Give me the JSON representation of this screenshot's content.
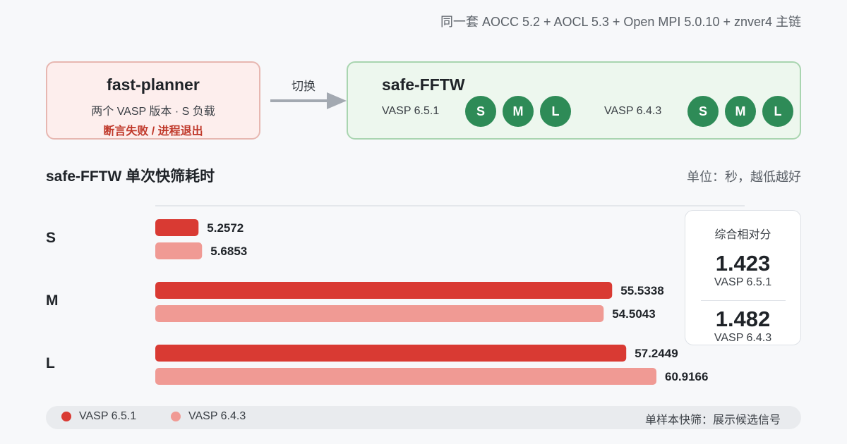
{
  "subtitle": "同一套 AOCC 5.2 + AOCL 5.3 + Open MPI 5.0.10 + znver4 主链",
  "fast_planner": {
    "title": "fast-planner",
    "desc": "两个 VASP 版本 · S 负载",
    "error": "断言失败 / 进程退出"
  },
  "arrow_label": "切换",
  "safe_fftw": {
    "title": "safe-FFTW",
    "version_a": "VASP 6.5.1",
    "version_b": "VASP 6.4.3",
    "loads_a": [
      "S",
      "M",
      "L"
    ],
    "loads_b": [
      "S",
      "M",
      "L"
    ]
  },
  "section_title": "safe-FFTW 单次快筛耗时",
  "unit": "单位：秒，越低越好",
  "colors": {
    "series_a": "#d93a33",
    "series_b": "#f09a94",
    "ok_green": "#2e8b57"
  },
  "chart_data": {
    "type": "bar",
    "orientation": "horizontal",
    "categories": [
      "S",
      "M",
      "L"
    ],
    "series": [
      {
        "name": "VASP 6.5.1",
        "values": [
          5.2572,
          55.5338,
          57.2449
        ],
        "labels": [
          "5.2572",
          "55.5338",
          "57.2449"
        ]
      },
      {
        "name": "VASP 6.4.3",
        "values": [
          5.6853,
          54.5043,
          60.9166
        ],
        "labels": [
          "5.6853",
          "54.5043",
          "60.9166"
        ]
      }
    ],
    "title": "",
    "xlabel": "",
    "ylabel": "",
    "xlim": [
      0,
      60.9166
    ],
    "grid": false,
    "legend": "bottom-left"
  },
  "score_card": {
    "header": "综合相对分",
    "a_value": "1.423",
    "a_label": "VASP 6.5.1",
    "b_value": "1.482",
    "b_label": "VASP 6.4.3"
  },
  "legend": {
    "a_label": "VASP 6.5.1",
    "b_label": "VASP 6.4.3",
    "note": "单样本快筛：展示候选信号"
  }
}
